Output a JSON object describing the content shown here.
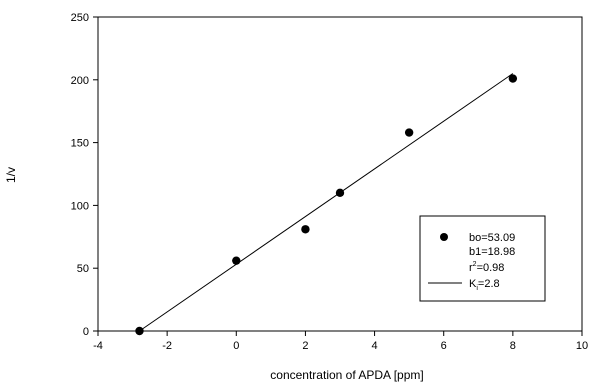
{
  "chart_data": {
    "type": "scatter",
    "xlabel": "concentration of APDA [ppm]",
    "ylabel": "1/v",
    "xlim": [
      -4,
      10
    ],
    "ylim": [
      0,
      250
    ],
    "xticks": [
      -4,
      -2,
      0,
      2,
      4,
      6,
      8,
      10
    ],
    "yticks": [
      0,
      50,
      100,
      150,
      200,
      250
    ],
    "grid": false,
    "legend_position": "lower-right",
    "series": [
      {
        "kind": "points",
        "x": [
          -2.8,
          0,
          2,
          3,
          5,
          8
        ],
        "y": [
          0,
          56,
          81,
          110,
          158,
          201
        ]
      },
      {
        "kind": "line",
        "x": [
          -2.8,
          8
        ],
        "y": [
          0,
          205
        ]
      }
    ],
    "legend": {
      "bo": "bo=53.09",
      "b1": "b1=18.98",
      "r2_prefix": "r",
      "r2_sup": "2",
      "r2_suffix": "=0.98",
      "ki_prefix": "K",
      "ki_sub": "i",
      "ki_suffix": "=2.8"
    }
  }
}
